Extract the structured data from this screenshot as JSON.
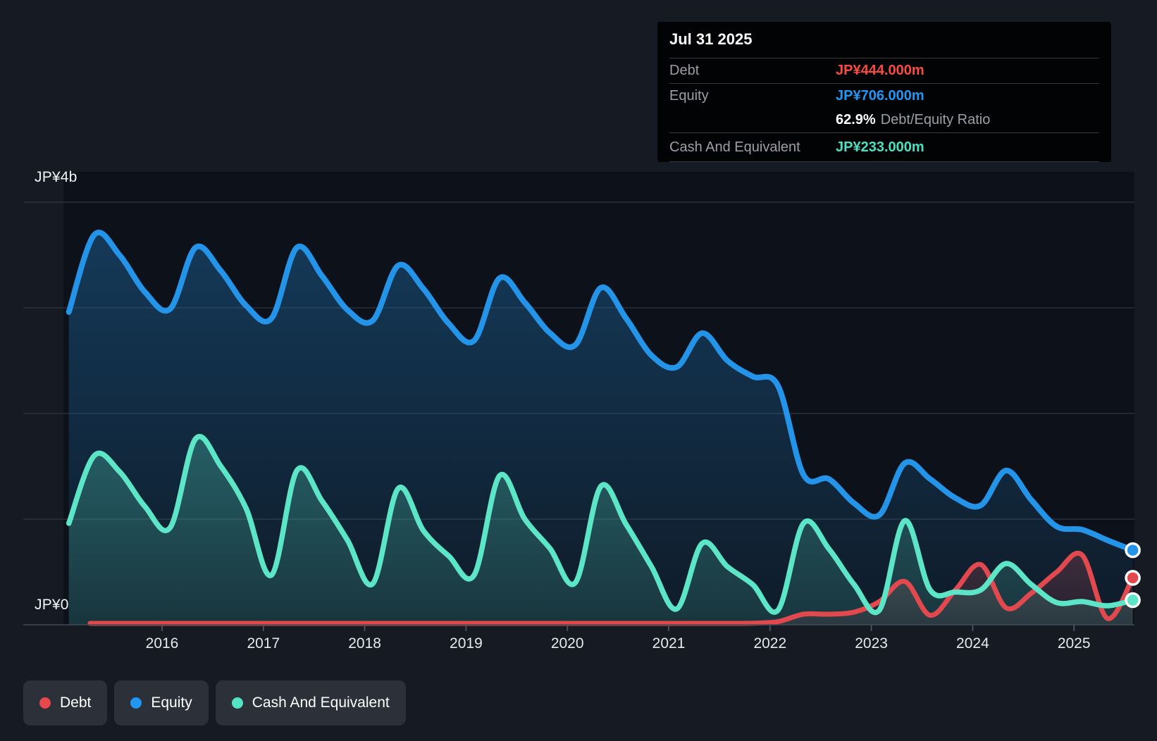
{
  "tooltip": {
    "date": "Jul 31 2025",
    "debt_label": "Debt",
    "debt_value": "JP¥444.000m",
    "equity_label": "Equity",
    "equity_value": "JP¥706.000m",
    "ratio_value": "62.9%",
    "ratio_label": "Debt/Equity Ratio",
    "cash_label": "Cash And Equivalent",
    "cash_value": "JP¥233.000m"
  },
  "axis": {
    "y_top_label": "JP¥4b",
    "y_zero_label": "JP¥0"
  },
  "legend": [
    {
      "label": "Debt",
      "color": "#e8474c"
    },
    {
      "label": "Equity",
      "color": "#2196f3"
    },
    {
      "label": "Cash And Equivalent",
      "color": "#54e3c4"
    }
  ],
  "colors": {
    "debt_line": "#e2494e",
    "equity_line": "#2494e9",
    "cash_line": "#5ce5c6",
    "debt_value_text": "#fa4b41",
    "equity_value_text": "#2196f3",
    "cash_value_text": "#4ce0c2"
  },
  "chart_data": {
    "type": "area",
    "title": "",
    "unit": "JP¥ billions",
    "x_axis": {
      "ticks": [
        2016,
        2017,
        2018,
        2019,
        2020,
        2021,
        2022,
        2023,
        2024,
        2025
      ],
      "range": [
        2015.08,
        2025.58
      ]
    },
    "y_axis": {
      "range": [
        0,
        4
      ],
      "gridline_values": [
        0,
        1,
        2,
        3,
        4
      ],
      "top_label": "JP¥4b",
      "zero_label": "JP¥0"
    },
    "legend_position": "bottom-left",
    "series": [
      {
        "name": "Debt",
        "color": "#e2494e",
        "points": [
          [
            2015.29,
            0.013
          ],
          [
            2015.58,
            0.013
          ],
          [
            2015.83,
            0.013
          ],
          [
            2016.08,
            0.013
          ],
          [
            2016.33,
            0.013
          ],
          [
            2016.58,
            0.013
          ],
          [
            2016.83,
            0.013
          ],
          [
            2017.08,
            0.013
          ],
          [
            2017.33,
            0.013
          ],
          [
            2017.58,
            0.013
          ],
          [
            2017.83,
            0.013
          ],
          [
            2018.08,
            0.013
          ],
          [
            2018.33,
            0.013
          ],
          [
            2018.58,
            0.013
          ],
          [
            2018.83,
            0.013
          ],
          [
            2019.08,
            0.013
          ],
          [
            2019.33,
            0.013
          ],
          [
            2019.58,
            0.013
          ],
          [
            2019.83,
            0.013
          ],
          [
            2020.08,
            0.013
          ],
          [
            2020.33,
            0.013
          ],
          [
            2020.58,
            0.013
          ],
          [
            2020.83,
            0.013
          ],
          [
            2021.08,
            0.013
          ],
          [
            2021.33,
            0.013
          ],
          [
            2021.58,
            0.013
          ],
          [
            2021.83,
            0.015
          ],
          [
            2022.08,
            0.03
          ],
          [
            2022.33,
            0.1
          ],
          [
            2022.58,
            0.1
          ],
          [
            2022.83,
            0.12
          ],
          [
            2023.08,
            0.22
          ],
          [
            2023.33,
            0.41
          ],
          [
            2023.58,
            0.09
          ],
          [
            2023.83,
            0.33
          ],
          [
            2024.08,
            0.57
          ],
          [
            2024.33,
            0.16
          ],
          [
            2024.58,
            0.3
          ],
          [
            2024.83,
            0.5
          ],
          [
            2025.08,
            0.66
          ],
          [
            2025.33,
            0.06
          ],
          [
            2025.58,
            0.444
          ]
        ]
      },
      {
        "name": "Equity",
        "color": "#2494e9",
        "points": [
          [
            2015.08,
            2.96
          ],
          [
            2015.33,
            3.69
          ],
          [
            2015.58,
            3.5
          ],
          [
            2015.83,
            3.15
          ],
          [
            2016.08,
            2.99
          ],
          [
            2016.33,
            3.57
          ],
          [
            2016.58,
            3.35
          ],
          [
            2016.83,
            3.02
          ],
          [
            2017.08,
            2.9
          ],
          [
            2017.33,
            3.57
          ],
          [
            2017.58,
            3.3
          ],
          [
            2017.83,
            2.98
          ],
          [
            2018.08,
            2.88
          ],
          [
            2018.33,
            3.4
          ],
          [
            2018.58,
            3.18
          ],
          [
            2018.83,
            2.85
          ],
          [
            2019.08,
            2.69
          ],
          [
            2019.33,
            3.28
          ],
          [
            2019.58,
            3.05
          ],
          [
            2019.83,
            2.76
          ],
          [
            2020.08,
            2.65
          ],
          [
            2020.33,
            3.19
          ],
          [
            2020.58,
            2.9
          ],
          [
            2020.83,
            2.55
          ],
          [
            2021.08,
            2.44
          ],
          [
            2021.33,
            2.76
          ],
          [
            2021.58,
            2.5
          ],
          [
            2021.83,
            2.35
          ],
          [
            2022.08,
            2.26
          ],
          [
            2022.33,
            1.42
          ],
          [
            2022.58,
            1.38
          ],
          [
            2022.83,
            1.15
          ],
          [
            2023.08,
            1.04
          ],
          [
            2023.33,
            1.53
          ],
          [
            2023.58,
            1.38
          ],
          [
            2023.83,
            1.2
          ],
          [
            2024.08,
            1.13
          ],
          [
            2024.33,
            1.46
          ],
          [
            2024.58,
            1.18
          ],
          [
            2024.83,
            0.93
          ],
          [
            2025.08,
            0.9
          ],
          [
            2025.33,
            0.8
          ],
          [
            2025.58,
            0.706
          ]
        ]
      },
      {
        "name": "Cash And Equivalent",
        "color": "#5ce5c6",
        "points": [
          [
            2015.08,
            0.96
          ],
          [
            2015.33,
            1.6
          ],
          [
            2015.58,
            1.45
          ],
          [
            2015.83,
            1.12
          ],
          [
            2016.08,
            0.92
          ],
          [
            2016.33,
            1.76
          ],
          [
            2016.58,
            1.5
          ],
          [
            2016.83,
            1.1
          ],
          [
            2017.08,
            0.47
          ],
          [
            2017.33,
            1.46
          ],
          [
            2017.58,
            1.17
          ],
          [
            2017.83,
            0.8
          ],
          [
            2018.08,
            0.39
          ],
          [
            2018.33,
            1.29
          ],
          [
            2018.58,
            0.89
          ],
          [
            2018.83,
            0.65
          ],
          [
            2019.08,
            0.47
          ],
          [
            2019.33,
            1.41
          ],
          [
            2019.58,
            1.0
          ],
          [
            2019.83,
            0.72
          ],
          [
            2020.08,
            0.4
          ],
          [
            2020.33,
            1.31
          ],
          [
            2020.58,
            0.95
          ],
          [
            2020.83,
            0.55
          ],
          [
            2021.08,
            0.15
          ],
          [
            2021.33,
            0.77
          ],
          [
            2021.58,
            0.55
          ],
          [
            2021.83,
            0.38
          ],
          [
            2022.08,
            0.14
          ],
          [
            2022.33,
            0.96
          ],
          [
            2022.58,
            0.72
          ],
          [
            2022.83,
            0.38
          ],
          [
            2023.08,
            0.14
          ],
          [
            2023.33,
            0.985
          ],
          [
            2023.58,
            0.33
          ],
          [
            2023.83,
            0.31
          ],
          [
            2024.08,
            0.33
          ],
          [
            2024.33,
            0.58
          ],
          [
            2024.58,
            0.38
          ],
          [
            2024.83,
            0.21
          ],
          [
            2025.08,
            0.22
          ],
          [
            2025.33,
            0.18
          ],
          [
            2025.58,
            0.233
          ]
        ]
      }
    ],
    "endpoint_values": {
      "Debt": "JP¥444.000m",
      "Equity": "JP¥706.000m",
      "Cash And Equivalent": "JP¥233.000m"
    }
  }
}
